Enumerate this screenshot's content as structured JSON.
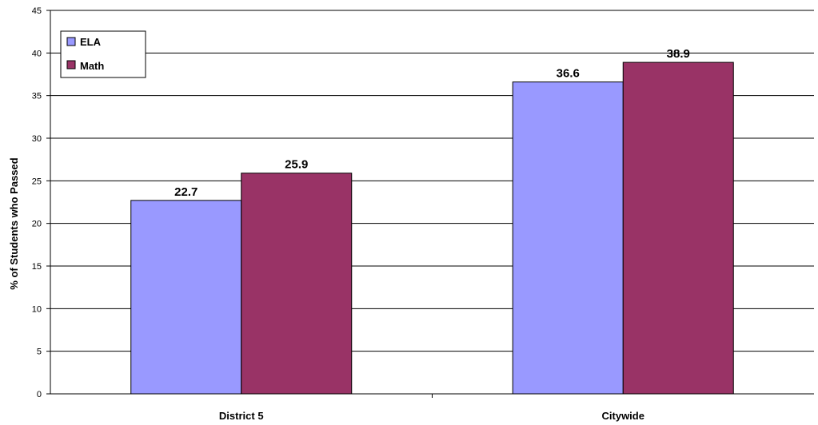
{
  "chart_data": {
    "type": "bar",
    "ylabel": "% of Students who Passed",
    "xlabel": "",
    "categories": [
      "District 5",
      "Citywide"
    ],
    "ylim": [
      0,
      45
    ],
    "yticks": [
      0,
      5,
      10,
      15,
      20,
      25,
      30,
      35,
      40,
      45
    ],
    "grid": true,
    "legend": "top-left",
    "series": [
      {
        "name": "ELA",
        "values": [
          22.7,
          36.6
        ],
        "color": "#9999ff"
      },
      {
        "name": "Math",
        "values": [
          25.9,
          38.9
        ],
        "color": "#993366"
      }
    ]
  }
}
